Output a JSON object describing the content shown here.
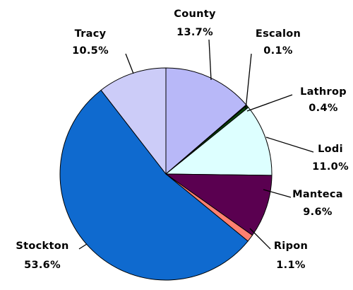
{
  "chart_data": {
    "type": "pie",
    "title": "",
    "start_angle_deg": 0,
    "direction": "clockwise",
    "legend": "none",
    "categories": [
      "County",
      "Escalon",
      "Lathrop",
      "Lodi",
      "Manteca",
      "Ripon",
      "Stockton",
      "Tracy"
    ],
    "values": [
      13.7,
      0.1,
      0.4,
      11.0,
      9.6,
      1.1,
      53.6,
      10.5
    ],
    "value_labels": [
      "13.7%",
      "0.1%",
      "0.4%",
      "11.0%",
      "9.6%",
      "1.1%",
      "53.6%",
      "10.5%"
    ],
    "colors": [
      "#B8B8F8",
      "#E6E6E6",
      "#0A4A0A",
      "#DDFFFF",
      "#5A0050",
      "#FF8070",
      "#0F6ACF",
      "#CCCCF8"
    ]
  }
}
